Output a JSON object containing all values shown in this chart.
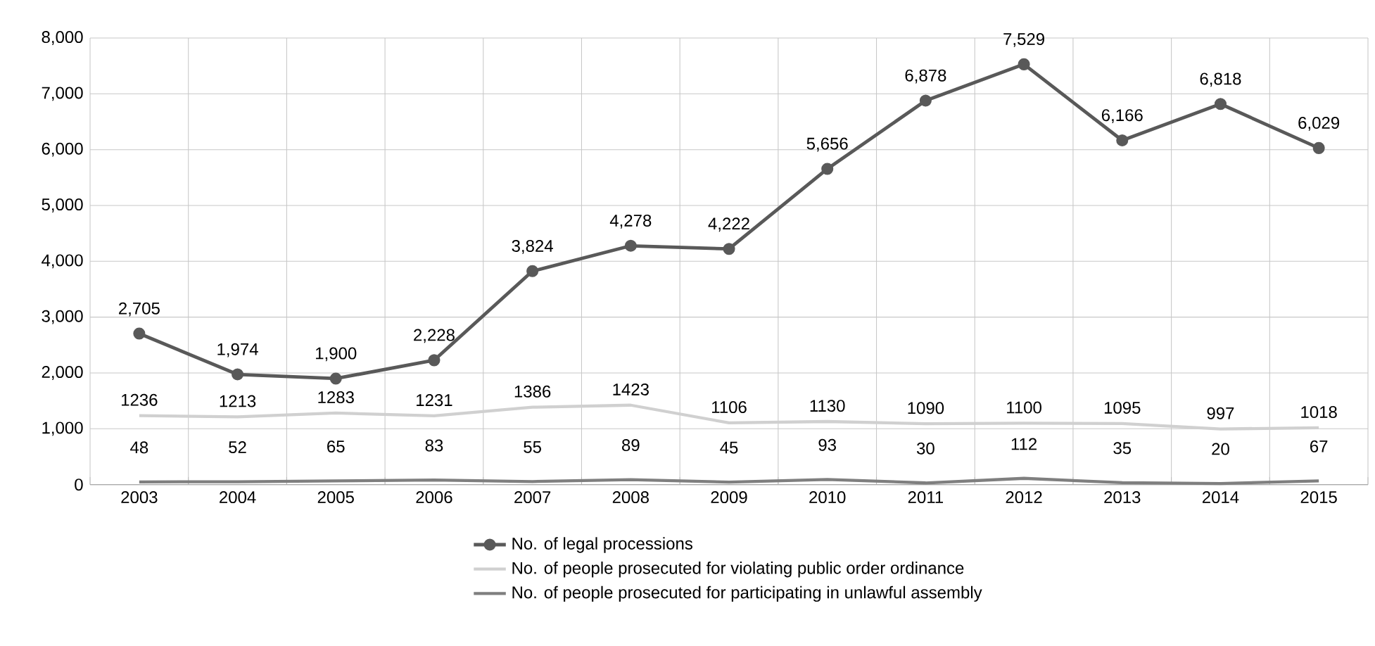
{
  "chart_data": {
    "type": "line",
    "categories": [
      "2003",
      "2004",
      "2005",
      "2006",
      "2007",
      "2008",
      "2009",
      "2010",
      "2011",
      "2012",
      "2013",
      "2014",
      "2015"
    ],
    "series": [
      {
        "name": "No. of legal processions",
        "color": "#595959",
        "marker": "circle",
        "values": [
          2705,
          1974,
          1900,
          2228,
          3824,
          4278,
          4222,
          5656,
          6878,
          7529,
          6166,
          6818,
          6029
        ],
        "value_labels": [
          "2,705",
          "1,974",
          "1,900",
          "2,228",
          "3,824",
          "4,278",
          "4,222",
          "5,656",
          "6,878",
          "7,529",
          "6,166",
          "6,818",
          "6,029"
        ]
      },
      {
        "name": "No. of people prosecuted for violating public order ordinance",
        "color": "#d0d0d0",
        "marker": "none",
        "values": [
          1236,
          1213,
          1283,
          1231,
          1386,
          1423,
          1106,
          1130,
          1090,
          1100,
          1095,
          997,
          1018
        ],
        "value_labels": [
          "1236",
          "1213",
          "1283",
          "1231",
          "1386",
          "1423",
          "1106",
          "1130",
          "1090",
          "1100",
          "1095",
          "997",
          "1018"
        ]
      },
      {
        "name": "No. of people prosecuted for participating in unlawful assembly",
        "color": "#7f7f7f",
        "marker": "none",
        "values": [
          48,
          52,
          65,
          83,
          55,
          89,
          45,
          93,
          30,
          112,
          35,
          20,
          67
        ],
        "value_labels": [
          "48",
          "52",
          "65",
          "83",
          "55",
          "89",
          "45",
          "93",
          "30",
          "112",
          "35",
          "20",
          "67"
        ]
      }
    ],
    "ylim": [
      0,
      8000
    ],
    "yticks": [
      {
        "value": 0,
        "label": "0"
      },
      {
        "value": 1000,
        "label": "1,000"
      },
      {
        "value": 2000,
        "label": "2,000"
      },
      {
        "value": 3000,
        "label": "3,000"
      },
      {
        "value": 4000,
        "label": "4,000"
      },
      {
        "value": 5000,
        "label": "5,000"
      },
      {
        "value": 6000,
        "label": "6,000"
      },
      {
        "value": 7000,
        "label": "7,000"
      },
      {
        "value": 8000,
        "label": "8,000"
      }
    ],
    "grid": true,
    "legend": "bottom"
  }
}
